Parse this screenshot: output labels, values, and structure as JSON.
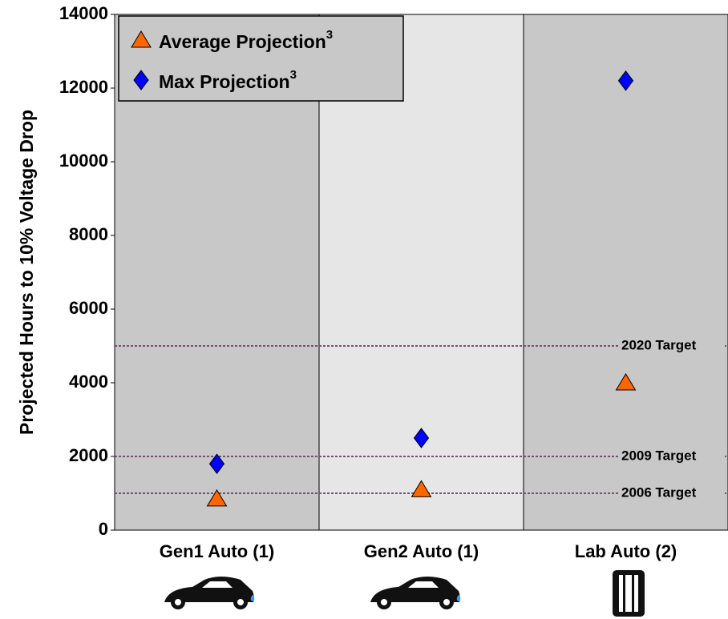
{
  "chart_data": {
    "type": "scatter",
    "y_label": "Projected Hours to 10% Voltage Drop",
    "categories": [
      "Gen1 Auto (1)",
      "Gen2 Auto (1)",
      "Lab Auto (2)"
    ],
    "series": [
      {
        "name": "Average Projection",
        "footnote": "3",
        "marker": "triangle",
        "color": "#ff6600",
        "values": [
          850,
          1100,
          4000
        ]
      },
      {
        "name": "Max Projection",
        "footnote": "3",
        "marker": "diamond",
        "color": "#0000ff",
        "values": [
          1800,
          2500,
          12200
        ]
      }
    ],
    "reference_lines": [
      {
        "value": 5000,
        "label": "2020 Target"
      },
      {
        "value": 2000,
        "label": "2009 Target"
      },
      {
        "value": 1000,
        "label": "2006 Target"
      }
    ],
    "ylim": [
      0,
      14000
    ],
    "yticks": [
      0,
      2000,
      4000,
      6000,
      8000,
      10000,
      12000,
      14000
    ],
    "panel_colors": [
      "#c8c8c8",
      "#e6e6e6",
      "#c8c8c8"
    ],
    "reference_color": "#7a4d73"
  }
}
